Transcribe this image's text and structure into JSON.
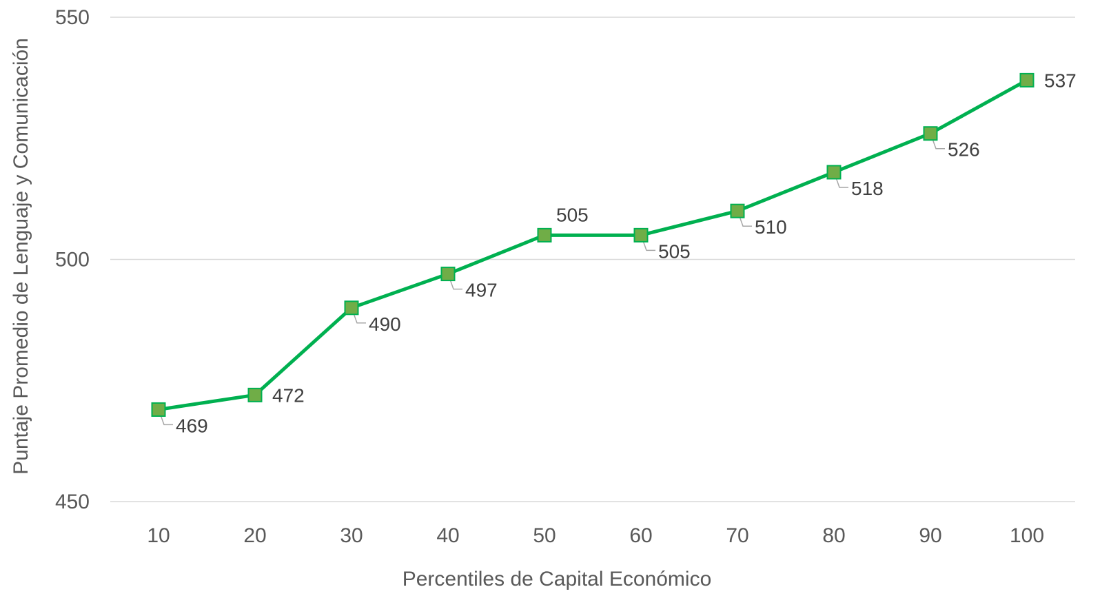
{
  "chart_data": {
    "type": "line",
    "title": "",
    "xlabel": "Percentiles de Capital Económico",
    "ylabel": "Puntaje Promedio de Lenguaje y Comunicación",
    "categories": [
      "10",
      "20",
      "30",
      "40",
      "50",
      "60",
      "70",
      "80",
      "90",
      "100"
    ],
    "series": [
      {
        "values": [
          469,
          472,
          490,
          497,
          505,
          505,
          510,
          518,
          526,
          537
        ],
        "data_labels": [
          "469",
          "472",
          "490",
          "497",
          "505",
          "505",
          "510",
          "518",
          "526",
          "537"
        ]
      }
    ],
    "yticks": [
      "450",
      "500",
      "550"
    ],
    "ylim": [
      450,
      550
    ],
    "grid": true,
    "legend": "none",
    "colors": {
      "line": "#00b050",
      "marker_fill": "#70ad47",
      "marker_stroke": "#00b050",
      "grid": "#d9d9d9",
      "text": "#595959"
    }
  }
}
